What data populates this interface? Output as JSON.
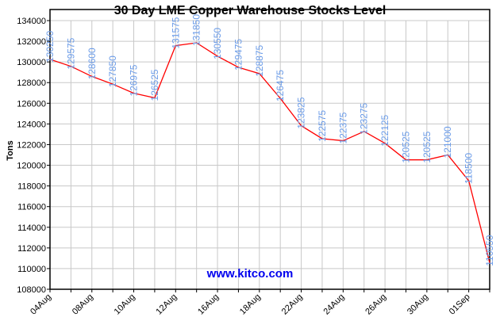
{
  "chart_data": {
    "type": "line",
    "title": "30 Day LME Copper Warehouse Stocks Level",
    "ylabel": "Tons",
    "xlabel": "",
    "watermark": "www.kitco.com",
    "ylim": [
      108000,
      134000
    ],
    "ytick_step": 2000,
    "grid": true,
    "categories": [
      "04Aug",
      "",
      "08Aug",
      "",
      "10Aug",
      "",
      "12Aug",
      "",
      "16Aug",
      "",
      "18Aug",
      "",
      "22Aug",
      "",
      "24Aug",
      "",
      "26Aug",
      "",
      "30Aug",
      "",
      "01Sep",
      ""
    ],
    "values": [
      130250,
      129575,
      128600,
      127850,
      126975,
      126525,
      131575,
      131850,
      130550,
      129475,
      128875,
      126475,
      123825,
      122575,
      122375,
      123275,
      122125,
      120525,
      120525,
      121000,
      118500,
      110550
    ],
    "colors": {
      "line": "#ff0000",
      "data_labels": "#6a9be8",
      "watermark": "#0000ee",
      "grid": "#c8c8c8"
    }
  }
}
